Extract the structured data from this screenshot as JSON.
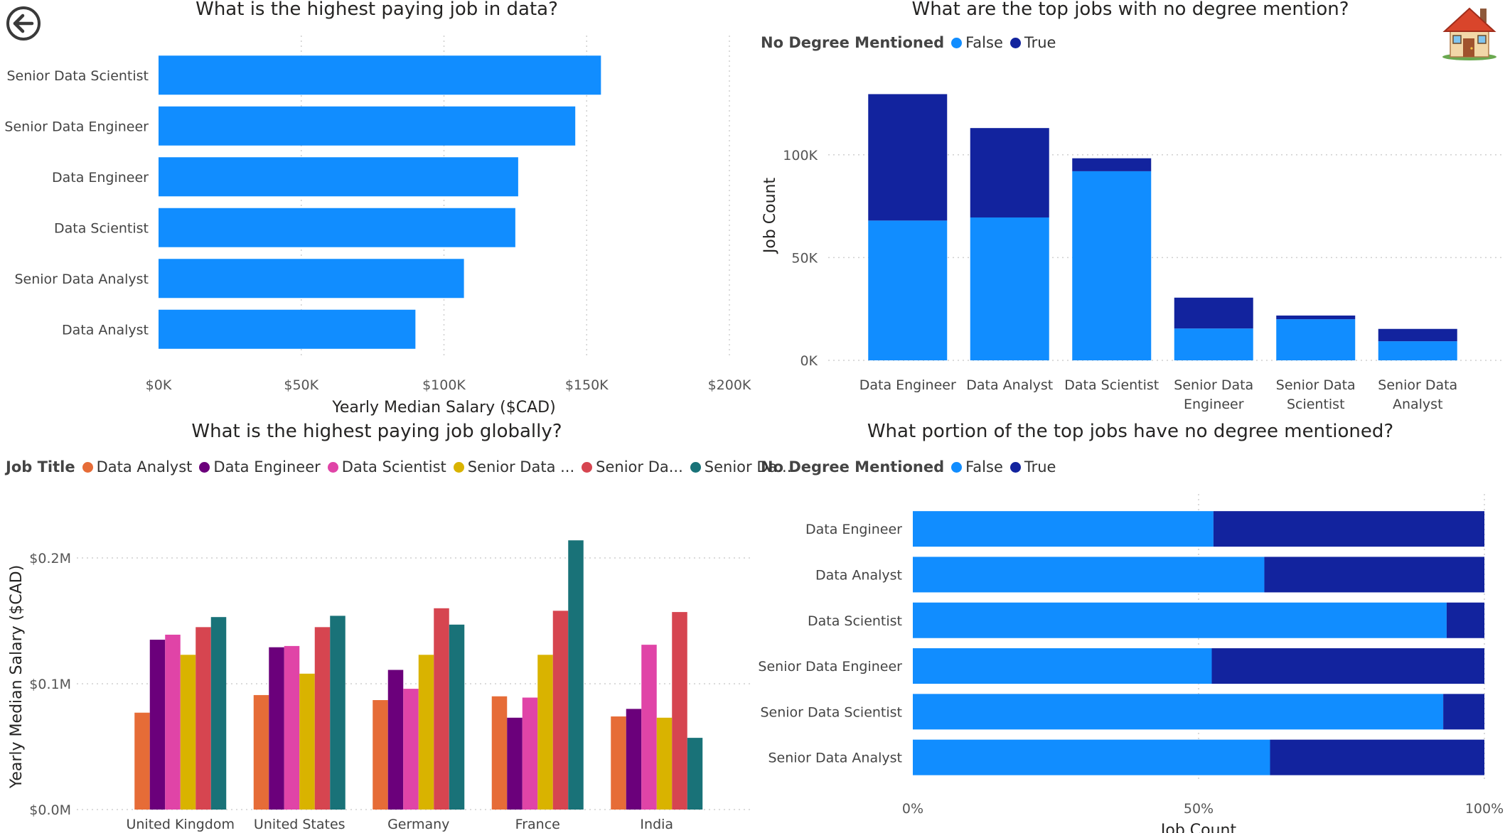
{
  "colors": {
    "false": "#118DFF",
    "true": "#12239E",
    "salary_bar": "#118DFF",
    "jobs": [
      "#E66C37",
      "#6B007B",
      "#E044A7",
      "#D9B300",
      "#D64550",
      "#197278"
    ]
  },
  "nav": {
    "back_icon": "arrow-left-circle-icon",
    "home_icon": "house-icon"
  },
  "legend_no_degree": {
    "title": "No Degree Mentioned",
    "items": [
      "False",
      "True"
    ]
  },
  "legend_job_title": {
    "title": "Job Title",
    "items": [
      "Data Analyst",
      "Data Engineer",
      "Data Scientist",
      "Senior Data ...",
      "Senior Da...",
      "Senior Da..."
    ]
  },
  "chart_data": [
    {
      "type": "bar",
      "orientation": "horizontal",
      "title": "What is the highest paying job in data?",
      "categories": [
        "Senior Data Scientist",
        "Senior Data Engineer",
        "Data Engineer",
        "Data Scientist",
        "Senior Data Analyst",
        "Data Analyst"
      ],
      "values": [
        155000,
        146000,
        126000,
        125000,
        107000,
        90000
      ],
      "xlabel": "Yearly Median Salary ($CAD)",
      "ylabel": "",
      "xlim": [
        0,
        200000
      ],
      "xticks": [
        "$0K",
        "$50K",
        "$100K",
        "$150K",
        "$200K"
      ],
      "grid": true
    },
    {
      "type": "bar",
      "stacked": true,
      "title": "What are the top jobs with no degree mention?",
      "categories": [
        "Data Engineer",
        "Data Analyst",
        "Data Scientist",
        "Senior Data Engineer",
        "Senior Data Scientist",
        "Senior Data Analyst"
      ],
      "series": [
        {
          "name": "False",
          "values": [
            68000,
            69500,
            92000,
            15500,
            20000,
            9300
          ]
        },
        {
          "name": "True",
          "values": [
            61500,
            43500,
            6300,
            15000,
            1800,
            6000
          ]
        }
      ],
      "ylabel": "Job Count",
      "ylim": [
        0,
        130000
      ],
      "yticks": [
        "0K",
        "50K",
        "100K"
      ],
      "legend": "top-left",
      "grid": true
    },
    {
      "type": "bar",
      "title": "What is the highest paying job globally?",
      "categories": [
        "United Kingdom",
        "United States",
        "Germany",
        "France",
        "India"
      ],
      "series": [
        {
          "name": "Data Analyst",
          "values": [
            77000,
            91000,
            87000,
            90000,
            74000
          ]
        },
        {
          "name": "Data Engineer",
          "values": [
            135000,
            129000,
            111000,
            73000,
            80000
          ]
        },
        {
          "name": "Data Scientist",
          "values": [
            139000,
            130000,
            96000,
            89000,
            131000
          ]
        },
        {
          "name": "Senior Data ...",
          "values": [
            123000,
            108000,
            123000,
            123000,
            73000
          ]
        },
        {
          "name": "Senior Da...",
          "values": [
            145000,
            145000,
            160000,
            158000,
            157000
          ]
        },
        {
          "name": "Senior Da...",
          "values": [
            153000,
            154000,
            147000,
            214000,
            57000
          ]
        }
      ],
      "ylabel": "Yearly Median Salary ($CAD)",
      "ylim": [
        0,
        200000
      ],
      "yticks": [
        "$0.0M",
        "$0.1M",
        "$0.2M"
      ],
      "legend": "top-left",
      "grid": true
    },
    {
      "type": "bar",
      "orientation": "horizontal",
      "stacked": true,
      "percent": true,
      "title": "What portion of the top jobs have no degree mentioned?",
      "categories": [
        "Data Engineer",
        "Data Analyst",
        "Data Scientist",
        "Senior Data Engineer",
        "Senior Data Scientist",
        "Senior Data Analyst"
      ],
      "series": [
        {
          "name": "False",
          "values": [
            52.6,
            61.5,
            93.4,
            52.3,
            92.8,
            62.5
          ]
        },
        {
          "name": "True",
          "values": [
            47.4,
            38.5,
            6.6,
            47.7,
            7.2,
            37.5
          ]
        }
      ],
      "xlabel": "Job Count",
      "xticks": [
        "0%",
        "50%",
        "100%"
      ],
      "legend": "top-left",
      "grid": true
    }
  ]
}
